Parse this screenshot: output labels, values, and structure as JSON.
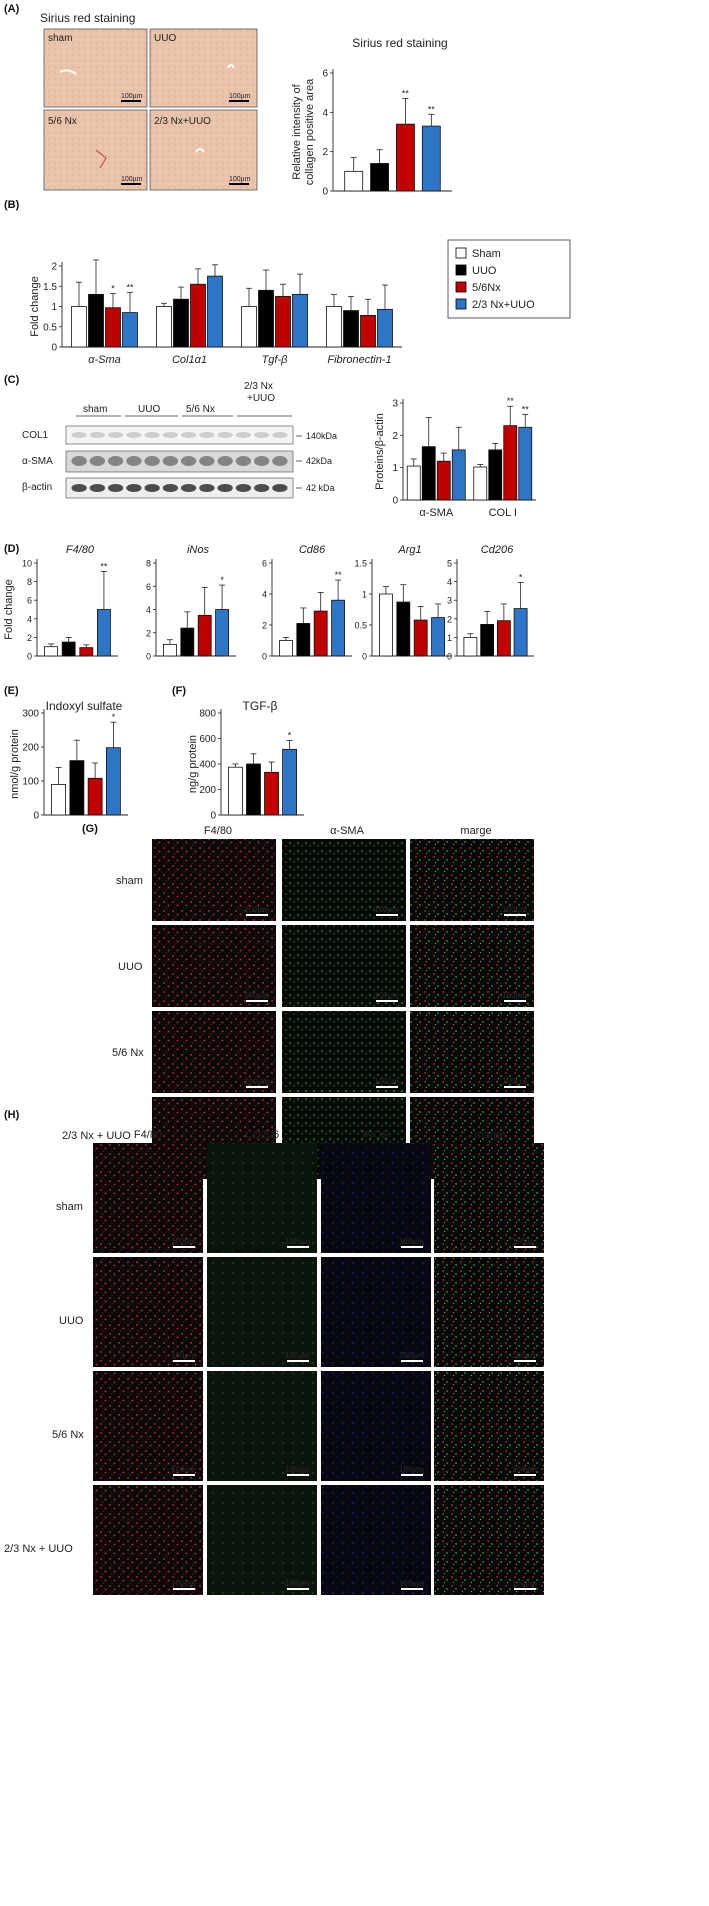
{
  "panel_labels": {
    "A": "(A)",
    "B": "(B)",
    "C": "(C)",
    "D": "(D)",
    "E": "(E)",
    "F": "(F)",
    "G": "(G)",
    "H": "(H)"
  },
  "scale_bar": "100µm",
  "panelA": {
    "heading": "Sirius red staining",
    "image_labels": [
      "sham",
      "UUO",
      "5/6 Nx",
      "2/3 Nx+UUO"
    ]
  },
  "legend": {
    "items": [
      {
        "label": "Sham",
        "color": "#ffffff"
      },
      {
        "label": "UUO",
        "color": "#000000"
      },
      {
        "label": "5/6Nx",
        "color": "#c00000"
      },
      {
        "label": "2/3 Nx+UUO",
        "color": "#2e75c7"
      }
    ]
  },
  "blot": {
    "group_labels": [
      "sham",
      "UUO",
      "5/6 Nx",
      "2/3 Nx\n+UUO"
    ],
    "rows": [
      {
        "label": "COL1",
        "kda": "140kDa"
      },
      {
        "label": "α-SMA",
        "kda": "42kDa"
      },
      {
        "label": "β-actin",
        "kda": "42 kDa"
      }
    ]
  },
  "panelG": {
    "columns": [
      "F4/80",
      "α-SMA",
      "marge"
    ],
    "column_colors": [
      "#e03030",
      "#2ca02c",
      "#222222"
    ],
    "rows": [
      "sham",
      "UUO",
      "5/6 Nx",
      "2/3 Nx + UUO"
    ]
  },
  "panelH": {
    "columns": [
      "F4/80",
      "CD206",
      "iNOS",
      "marge"
    ],
    "column_colors": [
      "#e03030",
      "#2ca02c",
      "#2f6fd0",
      "#222222"
    ],
    "rows": [
      "sham",
      "UUO",
      "5/6 Nx",
      "2/3 Nx + UUO"
    ]
  },
  "chart_data": [
    {
      "id": "A",
      "type": "bar",
      "title": "Sirius red staining",
      "ylabel": "Relative intensity of collagen positive  area",
      "ylim": [
        0,
        6
      ],
      "yticks": [
        0,
        2,
        4,
        6
      ],
      "categories": [
        "Sham",
        "UUO",
        "5/6Nx",
        "2/3 Nx+UUO"
      ],
      "values": [
        1.0,
        1.4,
        3.4,
        3.3
      ],
      "errors": [
        0.7,
        0.7,
        1.3,
        0.6
      ],
      "annotations": [
        "",
        "",
        "**",
        "**"
      ]
    },
    {
      "id": "B",
      "type": "bar",
      "ylabel": "Fold change",
      "ylim": [
        0,
        2
      ],
      "yticks": [
        0,
        0.5,
        1,
        1.5,
        2
      ],
      "categories": [
        "α-Sma",
        "Col1α1",
        "Tgf-β",
        "Fibronectin-1"
      ],
      "series": [
        {
          "name": "Sham",
          "values": [
            1.0,
            1.0,
            1.0,
            1.0
          ],
          "errors": [
            0.6,
            0.08,
            0.45,
            0.3
          ]
        },
        {
          "name": "UUO",
          "values": [
            1.3,
            1.18,
            1.4,
            0.9
          ],
          "errors": [
            0.85,
            0.3,
            0.5,
            0.35
          ]
        },
        {
          "name": "5/6Nx",
          "values": [
            0.97,
            1.55,
            1.25,
            0.78
          ],
          "errors": [
            0.35,
            0.38,
            0.3,
            0.4
          ]
        },
        {
          "name": "2/3 Nx+UUO",
          "values": [
            0.85,
            1.75,
            1.3,
            0.93
          ],
          "errors": [
            0.5,
            0.28,
            0.5,
            0.6
          ]
        }
      ],
      "annotations": [
        [
          "",
          "",
          "",
          ""
        ],
        [
          "",
          "",
          "",
          ""
        ],
        [
          "*",
          "",
          "",
          ""
        ],
        [
          "**",
          "",
          "",
          ""
        ]
      ]
    },
    {
      "id": "C",
      "type": "bar",
      "ylabel": "Proteins/β-actin",
      "ylim": [
        0,
        3
      ],
      "yticks": [
        0,
        1,
        2,
        3
      ],
      "categories": [
        "α-SMA",
        "COL I"
      ],
      "series": [
        {
          "name": "Sham",
          "values": [
            1.05,
            1.02
          ],
          "errors": [
            0.22,
            0.08
          ]
        },
        {
          "name": "UUO",
          "values": [
            1.65,
            1.55
          ],
          "errors": [
            0.9,
            0.2
          ]
        },
        {
          "name": "5/6Nx",
          "values": [
            1.2,
            2.3
          ],
          "errors": [
            0.25,
            0.6
          ]
        },
        {
          "name": "2/3 Nx+UUO",
          "values": [
            1.55,
            2.25
          ],
          "errors": [
            0.7,
            0.4
          ]
        }
      ],
      "annotations": [
        [
          "",
          ""
        ],
        [
          "",
          ""
        ],
        [
          "",
          "**"
        ],
        [
          "",
          "**"
        ]
      ]
    },
    {
      "id": "D1",
      "type": "bar",
      "title": "F4/80",
      "ylabel": "Fold change",
      "ylim": [
        0,
        10
      ],
      "yticks": [
        0,
        2,
        4,
        6,
        8,
        10
      ],
      "categories": [
        "Sham",
        "UUO",
        "5/6Nx",
        "2/3 Nx+UUO"
      ],
      "values": [
        1.0,
        1.5,
        0.9,
        5.0
      ],
      "errors": [
        0.3,
        0.5,
        0.3,
        4.1
      ],
      "annotations": [
        "",
        "",
        "",
        "**"
      ]
    },
    {
      "id": "D2",
      "type": "bar",
      "title": "iNos",
      "ylim": [
        0,
        8
      ],
      "yticks": [
        0,
        2,
        4,
        6,
        8
      ],
      "categories": [
        "Sham",
        "UUO",
        "5/6Nx",
        "2/3 Nx+UUO"
      ],
      "values": [
        1.0,
        2.4,
        3.5,
        4.0
      ],
      "errors": [
        0.4,
        1.4,
        2.4,
        2.1
      ],
      "annotations": [
        "",
        "",
        "",
        "*"
      ]
    },
    {
      "id": "D3",
      "type": "bar",
      "title": "Cd86",
      "ylim": [
        0,
        6
      ],
      "yticks": [
        0,
        2,
        4,
        6
      ],
      "categories": [
        "Sham",
        "UUO",
        "5/6Nx",
        "2/3 Nx+UUO"
      ],
      "values": [
        1.0,
        2.1,
        2.9,
        3.6
      ],
      "errors": [
        0.2,
        1.0,
        1.2,
        1.3
      ],
      "annotations": [
        "",
        "",
        "",
        "**"
      ]
    },
    {
      "id": "D4",
      "type": "bar",
      "title": "Arg1",
      "ylim": [
        0,
        1.5
      ],
      "yticks": [
        0,
        0.5,
        1,
        1.5
      ],
      "categories": [
        "Sham",
        "UUO",
        "5/6Nx",
        "2/3 Nx+UUO"
      ],
      "values": [
        1.0,
        0.87,
        0.58,
        0.62
      ],
      "errors": [
        0.12,
        0.28,
        0.22,
        0.22
      ],
      "annotations": [
        "",
        "",
        "",
        ""
      ]
    },
    {
      "id": "D5",
      "type": "bar",
      "title": "Cd206",
      "ylim": [
        0,
        5
      ],
      "yticks": [
        0,
        1,
        2,
        3,
        4,
        5
      ],
      "categories": [
        "Sham",
        "UUO",
        "5/6Nx",
        "2/3 Nx+UUO"
      ],
      "values": [
        1.0,
        1.7,
        1.9,
        2.55
      ],
      "errors": [
        0.2,
        0.7,
        0.9,
        1.4
      ],
      "annotations": [
        "",
        "",
        "",
        "*"
      ]
    },
    {
      "id": "E",
      "type": "bar",
      "title": "Indoxyl sulfate",
      "ylabel": "nmol/g protein",
      "ylim": [
        0,
        300
      ],
      "yticks": [
        0,
        100,
        200,
        300
      ],
      "categories": [
        "Sham",
        "UUO",
        "5/6Nx",
        "2/3 Nx+UUO"
      ],
      "values": [
        90,
        160,
        108,
        198
      ],
      "errors": [
        50,
        60,
        45,
        75
      ],
      "annotations": [
        "",
        "",
        "",
        "*"
      ]
    },
    {
      "id": "F",
      "type": "bar",
      "title": "TGF-β",
      "ylabel": "ng/g protein",
      "ylim": [
        0,
        800
      ],
      "yticks": [
        0,
        200,
        400,
        600,
        800
      ],
      "categories": [
        "Sham",
        "UUO",
        "5/6Nx",
        "2/3 Nx+UUO"
      ],
      "values": [
        375,
        400,
        335,
        515
      ],
      "errors": [
        25,
        80,
        80,
        70
      ],
      "annotations": [
        "",
        "",
        "",
        "*"
      ]
    }
  ]
}
